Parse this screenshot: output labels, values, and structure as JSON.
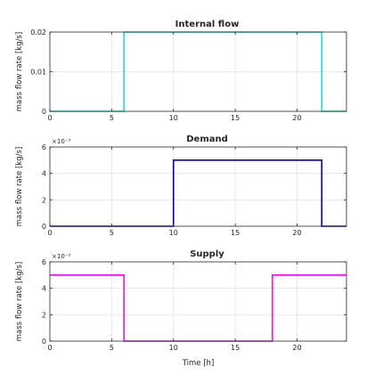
{
  "chart_data": [
    {
      "type": "line",
      "title": "Internal flow",
      "ylabel": "mass flow rate [kg/s]",
      "xlabel": "",
      "xlim": [
        0,
        24
      ],
      "ylim": [
        0,
        0.02
      ],
      "xticks": [
        0,
        5,
        10,
        15,
        20
      ],
      "yticks": [
        0,
        0.01,
        0.02
      ],
      "ytick_labels": [
        "0",
        "0.01",
        "0.02"
      ],
      "y_exponent": "",
      "grid": true,
      "series": [
        {
          "color": "#00e5ee",
          "x": [
            0,
            6,
            6,
            22,
            22,
            24
          ],
          "y": [
            0,
            0,
            0.02,
            0.02,
            0,
            0
          ]
        }
      ]
    },
    {
      "type": "line",
      "title": "Demand",
      "ylabel": "mass flow rate [kg/s]",
      "xlabel": "",
      "xlim": [
        0,
        24
      ],
      "ylim": [
        0,
        0.006
      ],
      "xticks": [
        0,
        5,
        10,
        15,
        20
      ],
      "yticks": [
        0,
        0.002,
        0.004,
        0.006
      ],
      "ytick_labels": [
        "0",
        "2",
        "4",
        "6"
      ],
      "y_exponent": "×10⁻³",
      "grid": true,
      "series": [
        {
          "color": "#0000b4",
          "x": [
            0,
            10,
            10,
            22,
            22,
            24
          ],
          "y": [
            0,
            0,
            0.005,
            0.005,
            0,
            0
          ]
        }
      ]
    },
    {
      "type": "line",
      "title": "Supply",
      "ylabel": "mass flow rate [kg/s]",
      "xlabel": "Time [h]",
      "xlim": [
        0,
        24
      ],
      "ylim": [
        0,
        0.006
      ],
      "xticks": [
        0,
        5,
        10,
        15,
        20
      ],
      "yticks": [
        0,
        0.002,
        0.004,
        0.006
      ],
      "ytick_labels": [
        "0",
        "2",
        "4",
        "6"
      ],
      "y_exponent": "×10⁻³",
      "grid": true,
      "series": [
        {
          "color": "#ff00ff",
          "x": [
            0,
            6,
            6,
            18,
            18,
            24
          ],
          "y": [
            0.005,
            0.005,
            0,
            0,
            0.005,
            0.005
          ]
        }
      ]
    }
  ]
}
